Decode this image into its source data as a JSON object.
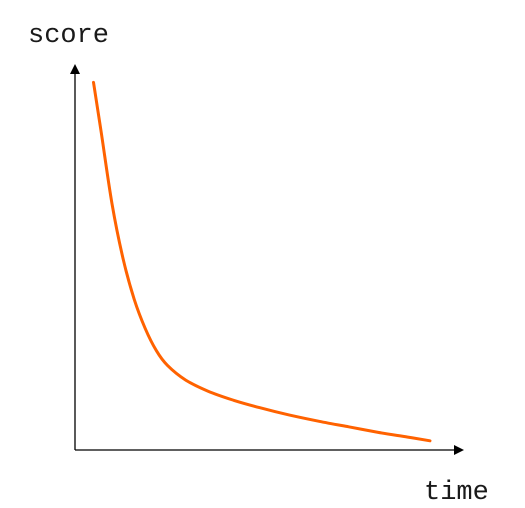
{
  "chart_data": {
    "type": "line",
    "title": "",
    "xlabel": "time",
    "ylabel": "score",
    "grid": false,
    "legend": "none",
    "ticks": "none",
    "series": [
      {
        "color": "#ff6200",
        "points": [
          [
            0.05,
            1.0
          ],
          [
            0.07,
            0.87
          ],
          [
            0.1,
            0.67
          ],
          [
            0.13,
            0.52
          ],
          [
            0.16,
            0.41
          ],
          [
            0.19,
            0.33
          ],
          [
            0.22,
            0.27
          ],
          [
            0.25,
            0.23
          ],
          [
            0.3,
            0.19
          ],
          [
            0.36,
            0.16
          ],
          [
            0.43,
            0.135
          ],
          [
            0.5,
            0.115
          ],
          [
            0.58,
            0.095
          ],
          [
            0.66,
            0.078
          ],
          [
            0.74,
            0.063
          ],
          [
            0.82,
            0.048
          ],
          [
            0.9,
            0.035
          ],
          [
            0.96,
            0.025
          ]
        ]
      }
    ],
    "xlim": [
      0,
      1.06
    ],
    "ylim": [
      0,
      1.05
    ]
  }
}
